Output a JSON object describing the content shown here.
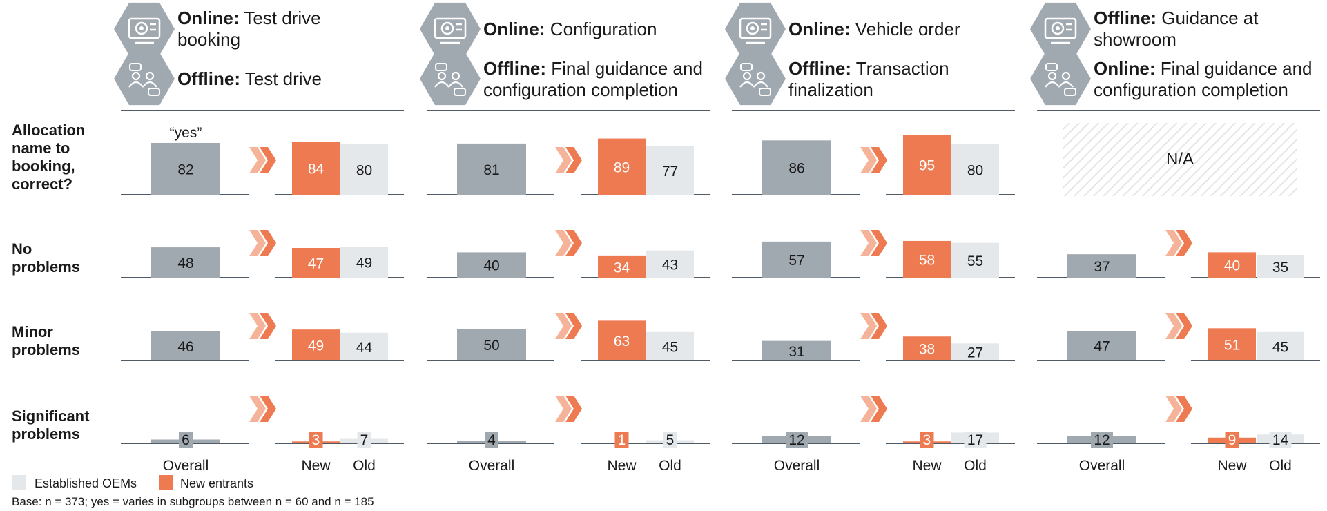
{
  "colors": {
    "overall": "#a1a9b0",
    "new": "#ee7a52",
    "old": "#e5e8eb",
    "axis": "#4f5b66",
    "icon": "#a1a9b0",
    "chevron_dark": "#ee7a52",
    "chevron_light": "#f5b49a",
    "na_hatch": "#e3e6e9"
  },
  "headers": [
    {
      "top_icon": "monitor-icon",
      "top_bold": "Online:",
      "top_text": "Test drive booking",
      "bottom_icon": "people-chat-icon",
      "bottom_bold": "Offline:",
      "bottom_text": "Test drive"
    },
    {
      "top_icon": "monitor-icon",
      "top_bold": "Online:",
      "top_text": "Configuration",
      "bottom_icon": "people-chat-icon",
      "bottom_bold": "Offline:",
      "bottom_text": "Final guidance and configuration completion"
    },
    {
      "top_icon": "monitor-icon",
      "top_bold": "Online:",
      "top_text": "Vehicle order",
      "bottom_icon": "people-chat-icon",
      "bottom_bold": "Offline:",
      "bottom_text": "Transaction finalization"
    },
    {
      "top_icon": "monitor-icon",
      "top_bold": "Offline:",
      "top_text": "Guidance at showroom",
      "bottom_icon": "people-chat-icon",
      "bottom_bold": "Online:",
      "bottom_text": "Final guidance and configuration completion"
    }
  ],
  "row_labels": [
    [
      "Allocation",
      "name to",
      "booking,",
      "correct?"
    ],
    [
      "No",
      "problems"
    ],
    [
      "Minor",
      "problems"
    ],
    [
      "Significant",
      "problems"
    ]
  ],
  "yes_label": "“yes”",
  "na_label": "N/A",
  "category_labels": {
    "overall": "Overall",
    "new": "New",
    "old": "Old"
  },
  "legend": {
    "established": "Established OEMs",
    "new_entrants": "New entrants"
  },
  "footnote": "Base: n = 373; yes = varies in subgroups between n = 60 and n = 185",
  "chart_data": {
    "type": "bar",
    "unit": "%",
    "series": [
      {
        "name": "Established OEMs",
        "key": "old"
      },
      {
        "name": "New entrants",
        "key": "new"
      }
    ],
    "columns": [
      "Test drive",
      "Configuration",
      "Vehicle order",
      "Guidance at showroom"
    ],
    "rows": [
      "Allocation name to booking, correct?",
      "No problems",
      "Minor problems",
      "Significant problems"
    ],
    "values": [
      [
        {
          "overall": 82,
          "new": 84,
          "old": 80
        },
        {
          "overall": 81,
          "new": 89,
          "old": 77
        },
        {
          "overall": 86,
          "new": 95,
          "old": 80
        },
        null
      ],
      [
        {
          "overall": 48,
          "new": 47,
          "old": 49
        },
        {
          "overall": 40,
          "new": 34,
          "old": 43
        },
        {
          "overall": 57,
          "new": 58,
          "old": 55
        },
        {
          "overall": 37,
          "new": 40,
          "old": 35
        }
      ],
      [
        {
          "overall": 46,
          "new": 49,
          "old": 44
        },
        {
          "overall": 50,
          "new": 63,
          "old": 45
        },
        {
          "overall": 31,
          "new": 38,
          "old": 27
        },
        {
          "overall": 47,
          "new": 51,
          "old": 45
        }
      ],
      [
        {
          "overall": 6,
          "new": 3,
          "old": 7
        },
        {
          "overall": 4,
          "new": 1,
          "old": 5
        },
        {
          "overall": 12,
          "new": 3,
          "old": 17
        },
        {
          "overall": 12,
          "new": 9,
          "old": 14
        }
      ]
    ]
  }
}
